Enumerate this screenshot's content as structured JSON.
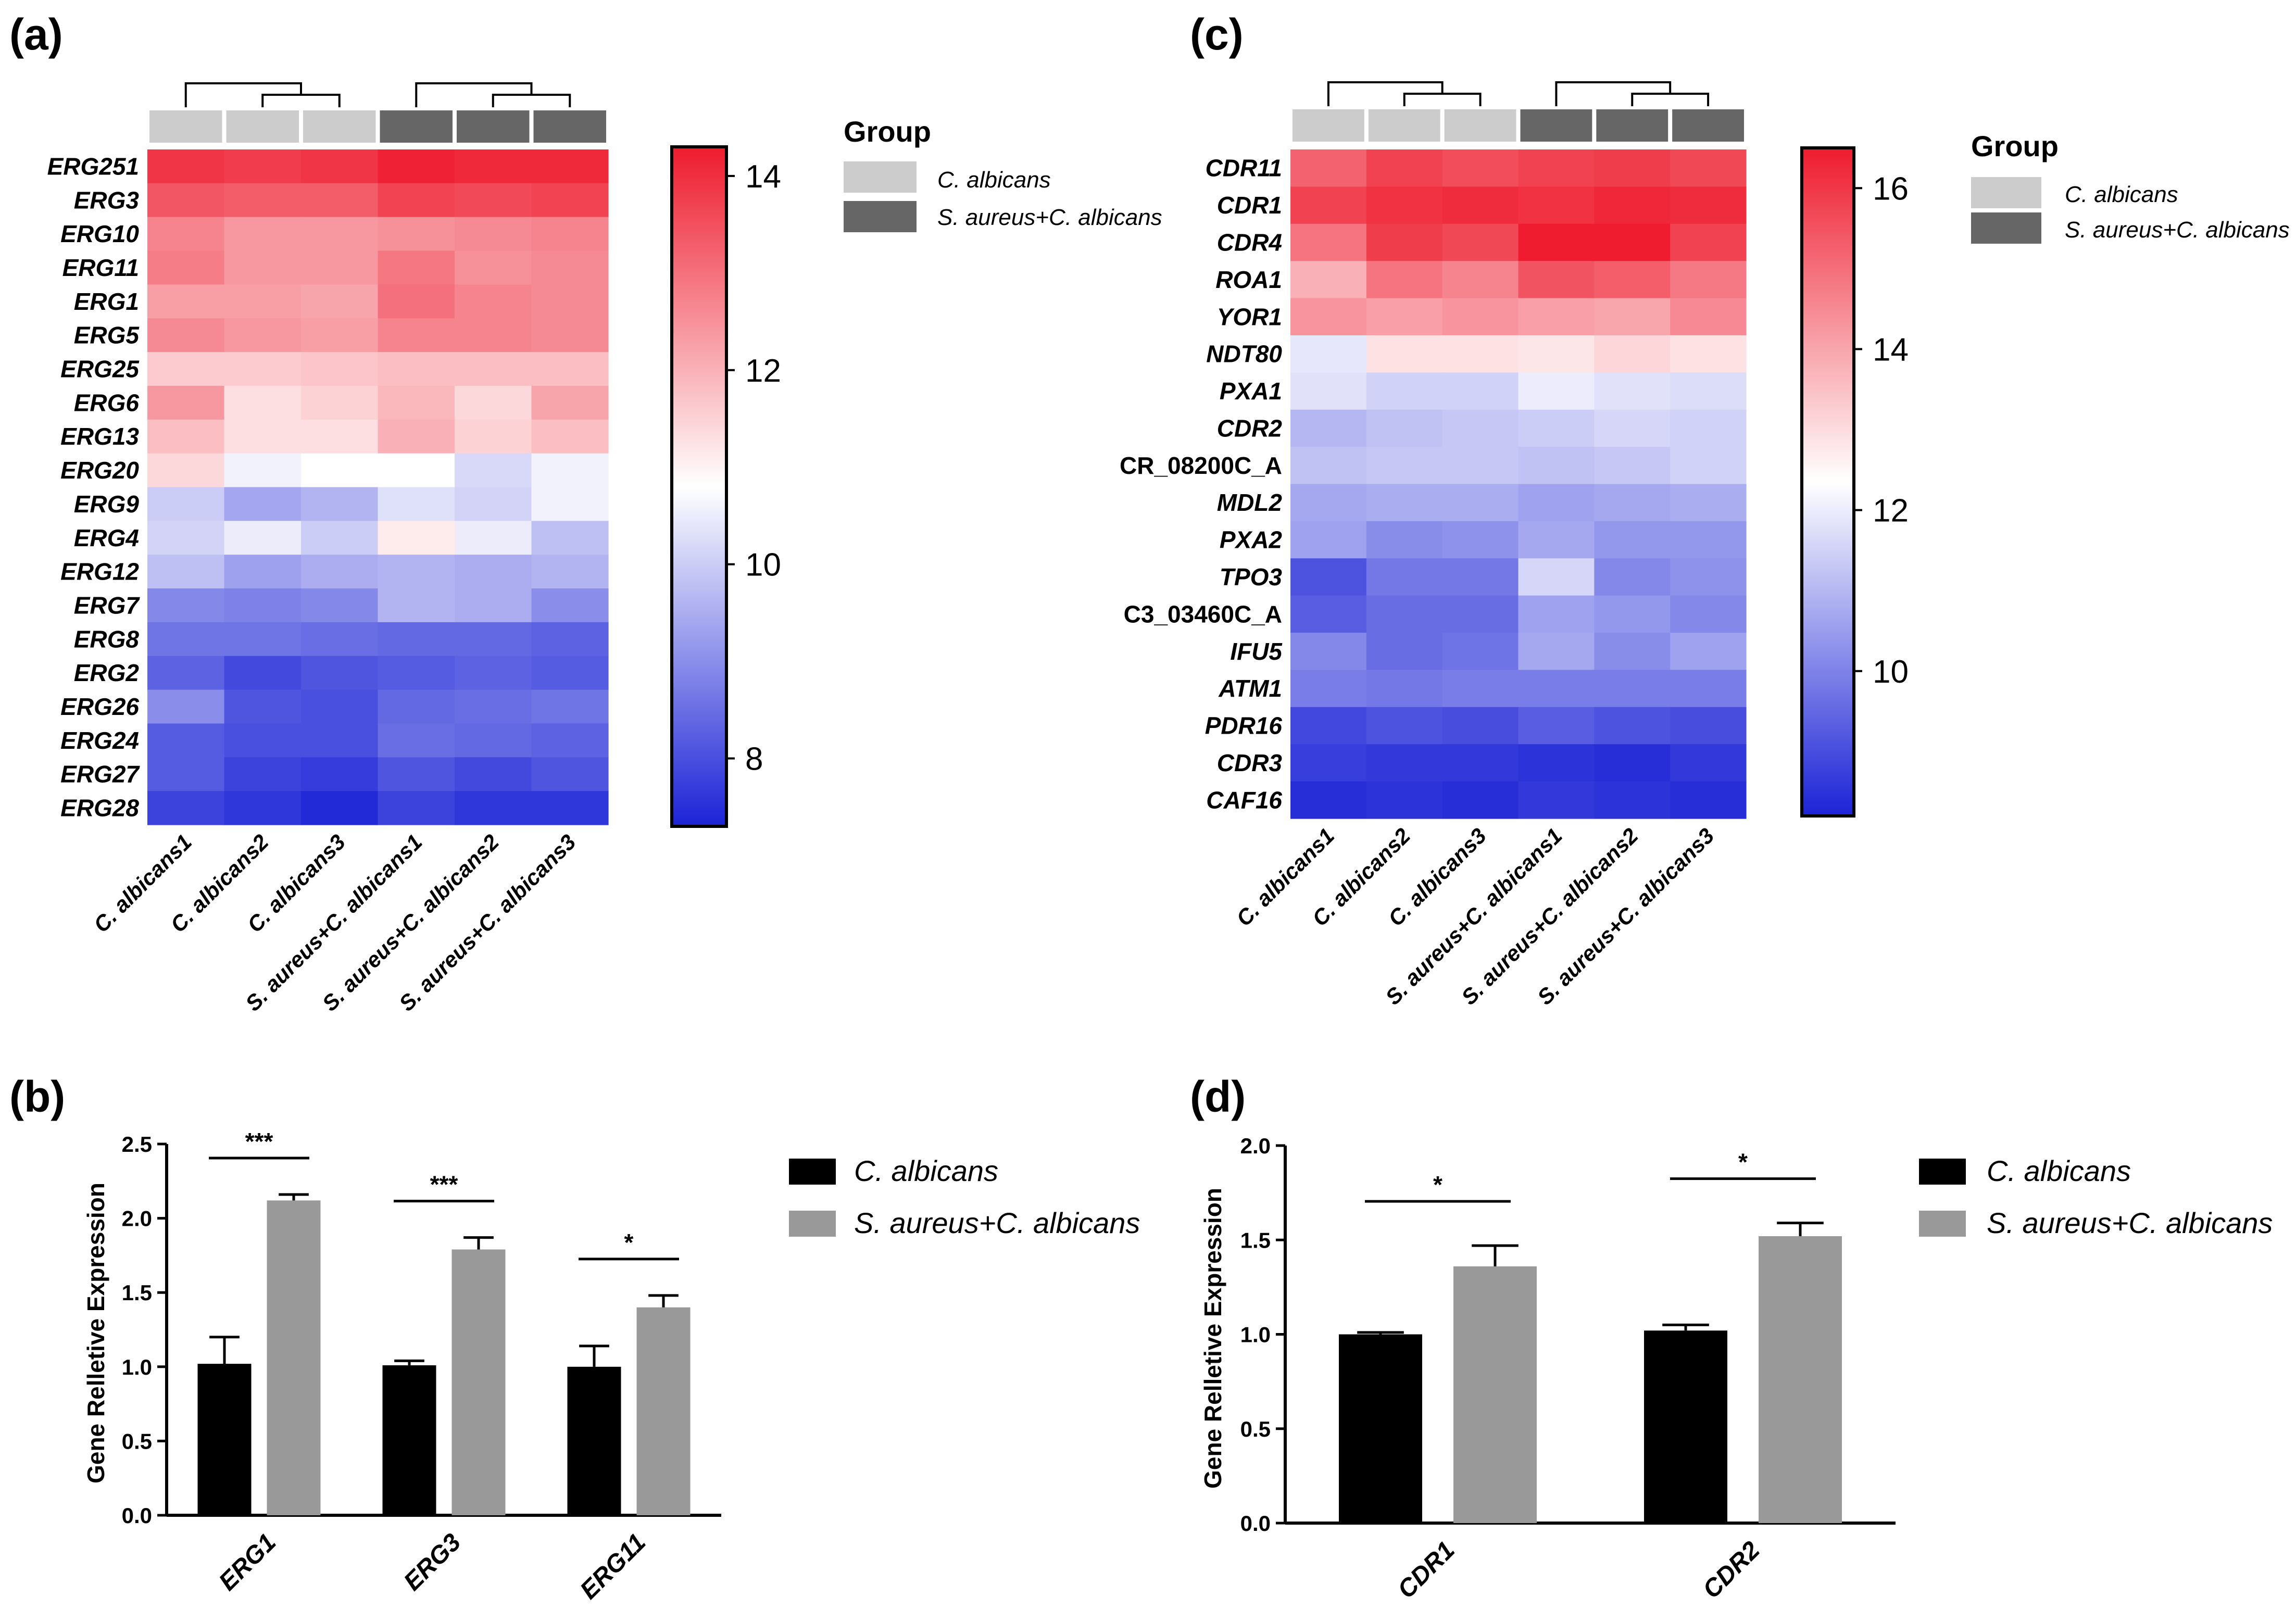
{
  "colors": {
    "group_ca": "#cccccc",
    "group_sa": "#666666",
    "bar_ca": "#000000",
    "bar_sa": "#999999",
    "scale_low": "#1c23d6",
    "scale_mid": "#ffffff",
    "scale_high": "#ee1c2e"
  },
  "chart_data": [
    {
      "panel": "(a)",
      "type": "heatmap",
      "rows": [
        "ERG251",
        "ERG3",
        "ERG10",
        "ERG11",
        "ERG1",
        "ERG5",
        "ERG25",
        "ERG6",
        "ERG13",
        "ERG20",
        "ERG9",
        "ERG4",
        "ERG12",
        "ERG7",
        "ERG8",
        "ERG2",
        "ERG26",
        "ERG24",
        "ERG27",
        "ERG28"
      ],
      "columns": [
        "C. albicans1",
        "C. albicans2",
        "C. albicans3",
        "S. aureus+C. albicans1",
        "S. aureus+C. albicans2",
        "S. aureus+C. albicans3"
      ],
      "column_groups": [
        "ca",
        "ca",
        "ca",
        "sa",
        "sa",
        "sa"
      ],
      "values": [
        [
          13.9,
          13.8,
          13.9,
          14.2,
          14.1,
          14.1
        ],
        [
          13.4,
          13.3,
          13.3,
          13.7,
          13.6,
          13.7
        ],
        [
          12.7,
          12.4,
          12.4,
          12.5,
          12.6,
          12.7
        ],
        [
          12.8,
          12.4,
          12.4,
          12.9,
          12.5,
          12.6
        ],
        [
          12.3,
          12.3,
          12.2,
          13.0,
          12.7,
          12.6
        ],
        [
          12.6,
          12.4,
          12.3,
          12.7,
          12.7,
          12.6
        ],
        [
          11.6,
          11.6,
          11.7,
          11.8,
          11.8,
          11.8
        ],
        [
          12.4,
          11.3,
          11.5,
          11.9,
          11.4,
          12.2
        ],
        [
          11.8,
          11.3,
          11.3,
          12.0,
          11.5,
          11.8
        ],
        [
          11.4,
          10.6,
          10.8,
          10.8,
          10.2,
          10.6
        ],
        [
          10.0,
          9.4,
          9.6,
          10.3,
          10.1,
          10.6
        ],
        [
          10.1,
          10.5,
          10.0,
          11.1,
          10.5,
          9.8
        ],
        [
          9.8,
          9.3,
          9.5,
          9.6,
          9.5,
          9.6
        ],
        [
          8.9,
          8.8,
          8.9,
          9.6,
          9.5,
          9.0
        ],
        [
          8.6,
          8.6,
          8.5,
          8.4,
          8.4,
          8.3
        ],
        [
          8.3,
          7.9,
          8.1,
          8.2,
          8.3,
          8.2
        ],
        [
          9.0,
          8.1,
          8.0,
          8.4,
          8.5,
          8.6
        ],
        [
          8.2,
          8.0,
          8.0,
          8.5,
          8.4,
          8.3
        ],
        [
          8.2,
          7.8,
          7.7,
          8.1,
          7.9,
          8.1
        ],
        [
          7.8,
          7.6,
          7.4,
          7.8,
          7.6,
          7.6
        ]
      ],
      "scale": {
        "min": 7.3,
        "max": 14.3,
        "ticks": [
          8,
          10,
          12,
          14
        ]
      },
      "dendrogram": [
        [
          [
            0
          ],
          [
            1,
            2
          ]
        ],
        [
          [
            3
          ],
          [
            4,
            5
          ]
        ]
      ],
      "legend": {
        "title": "Group",
        "entries": [
          "C. albicans",
          "S. aureus+C. albicans"
        ]
      }
    },
    {
      "panel": "(c)",
      "type": "heatmap",
      "rows": [
        "CDR11",
        "CDR1",
        "CDR4",
        "ROA1",
        "YOR1",
        "NDT80",
        "PXA1",
        "CDR2",
        "CR_08200C_A",
        "MDL2",
        "PXA2",
        "TPO3",
        "C3_03460C_A",
        "IFU5",
        "ATM1",
        "PDR16",
        "CDR3",
        "CAF16"
      ],
      "italic_rows": [
        true,
        true,
        true,
        true,
        true,
        true,
        true,
        true,
        false,
        true,
        true,
        true,
        false,
        true,
        true,
        true,
        true,
        true
      ],
      "columns": [
        "C. albicans1",
        "C. albicans2",
        "C. albicans3",
        "S. aureus+C. albicans1",
        "S. aureus+C. albicans2",
        "S. aureus+C. albicans3"
      ],
      "column_groups": [
        "ca",
        "ca",
        "ca",
        "sa",
        "sa",
        "sa"
      ],
      "values": [
        [
          15.2,
          15.8,
          15.6,
          15.8,
          15.9,
          15.7
        ],
        [
          15.8,
          16.1,
          16.2,
          16.1,
          16.3,
          16.2
        ],
        [
          14.9,
          15.9,
          15.7,
          16.5,
          16.5,
          15.8
        ],
        [
          13.8,
          14.9,
          14.6,
          15.5,
          15.3,
          14.8
        ],
        [
          14.3,
          14.1,
          14.3,
          14.1,
          14.0,
          14.5
        ],
        [
          11.9,
          12.9,
          12.9,
          12.8,
          13.1,
          12.9
        ],
        [
          11.8,
          11.5,
          11.5,
          12.0,
          11.8,
          11.7
        ],
        [
          11.0,
          11.2,
          11.3,
          11.4,
          11.6,
          11.5
        ],
        [
          11.2,
          11.3,
          11.3,
          11.2,
          11.3,
          11.5
        ],
        [
          10.7,
          10.8,
          10.8,
          10.6,
          10.7,
          10.8
        ],
        [
          10.6,
          10.2,
          10.3,
          10.7,
          10.4,
          10.4
        ],
        [
          9.1,
          9.8,
          9.8,
          11.6,
          10.1,
          10.3
        ],
        [
          9.3,
          9.6,
          9.6,
          10.6,
          10.4,
          10.1
        ],
        [
          10.1,
          9.6,
          9.7,
          10.7,
          10.2,
          10.6
        ],
        [
          9.9,
          9.8,
          9.9,
          9.9,
          9.9,
          9.9
        ],
        [
          8.9,
          9.1,
          9.0,
          9.3,
          9.1,
          9.0
        ],
        [
          8.7,
          8.6,
          8.6,
          8.5,
          8.4,
          8.6
        ],
        [
          8.4,
          8.5,
          8.4,
          8.6,
          8.5,
          8.4
        ]
      ],
      "scale": {
        "min": 8.2,
        "max": 16.5,
        "ticks": [
          10,
          12,
          14,
          16
        ]
      },
      "dendrogram": [
        [
          [
            0
          ],
          [
            1,
            2
          ]
        ],
        [
          [
            3
          ],
          [
            4,
            5
          ]
        ]
      ],
      "legend": {
        "title": "Group",
        "entries": [
          "C. albicans",
          "S. aureus+C. albicans"
        ]
      }
    },
    {
      "panel": "(b)",
      "type": "bar",
      "categories": [
        "ERG1",
        "ERG3",
        "ERG11"
      ],
      "series": [
        {
          "name": "C. albicans",
          "values": [
            1.02,
            1.01,
            1.0
          ],
          "errors": [
            0.18,
            0.03,
            0.14
          ]
        },
        {
          "name": "S. aureus+C. albicans",
          "values": [
            2.12,
            1.79,
            1.4
          ],
          "errors": [
            0.04,
            0.08,
            0.08
          ]
        }
      ],
      "significance": [
        "***",
        "***",
        "*"
      ],
      "ylabel": "Gene Relletive Expression",
      "ylim": [
        0,
        2.5
      ],
      "yticks": [
        "0.0",
        "0.5",
        "1.0",
        "1.5",
        "2.0",
        "2.5"
      ]
    },
    {
      "panel": "(d)",
      "type": "bar",
      "categories": [
        "CDR1",
        "CDR2"
      ],
      "series": [
        {
          "name": "C. albicans",
          "values": [
            1.0,
            1.02
          ],
          "errors": [
            0.01,
            0.03
          ]
        },
        {
          "name": "S. aureus+C. albicans",
          "values": [
            1.36,
            1.52
          ],
          "errors": [
            0.11,
            0.07
          ]
        }
      ],
      "significance": [
        "*",
        "*"
      ],
      "ylabel": "Gene Relletive Expression",
      "ylim": [
        0,
        2.0
      ],
      "yticks": [
        "0.0",
        "0.5",
        "1.0",
        "1.5",
        "2.0"
      ]
    }
  ]
}
